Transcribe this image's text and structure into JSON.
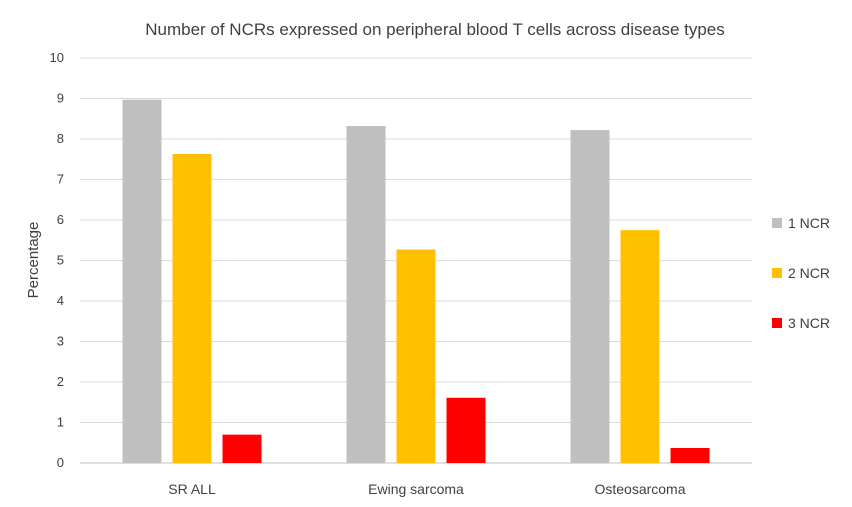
{
  "chart_data": {
    "type": "bar",
    "title": "Number of NCRs expressed on peripheral blood T cells across disease types",
    "xlabel": "",
    "ylabel": "Percentage",
    "ylim": [
      0,
      10
    ],
    "yticks": [
      0,
      1,
      2,
      3,
      4,
      5,
      6,
      7,
      8,
      9,
      10
    ],
    "grid": true,
    "legend_position": "right",
    "categories": [
      "SR ALL",
      "Ewing sarcoma",
      "Osteosarcoma"
    ],
    "series": [
      {
        "name": "1 NCR",
        "color": "#bfbfbf",
        "values": [
          8.97,
          8.32,
          8.22
        ]
      },
      {
        "name": "2 NCR",
        "color": "#ffc000",
        "values": [
          7.63,
          5.27,
          5.75
        ]
      },
      {
        "name": "3 NCR",
        "color": "#ff0000",
        "values": [
          0.7,
          1.61,
          0.37
        ]
      }
    ]
  }
}
